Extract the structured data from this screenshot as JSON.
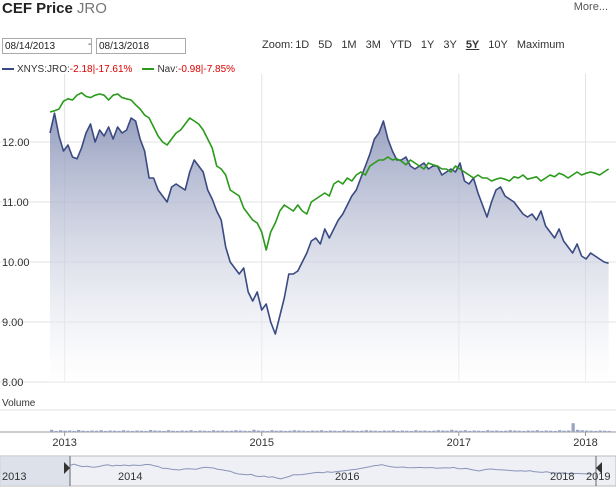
{
  "header": {
    "title": "CEF Price",
    "ticker": "JRO",
    "more_label": "More..."
  },
  "range": {
    "start": "08/14/2013",
    "end": "08/13/2018",
    "separator": "-"
  },
  "zoom": {
    "label": "Zoom:",
    "options": [
      "1D",
      "5D",
      "1M",
      "3M",
      "YTD",
      "1Y",
      "3Y",
      "5Y",
      "10Y",
      "Maximum"
    ],
    "selected": "5Y"
  },
  "legend": [
    {
      "name": "XNYS:JRO",
      "change": "-2.18",
      "pct": "-17.61%",
      "color": "#3a4a82"
    },
    {
      "name": "Nav",
      "change": "-0.98",
      "pct": "-7.85%",
      "color": "#2a9a1a"
    }
  ],
  "volume_label": "Volume",
  "chart_data": {
    "type": "line",
    "ylim": [
      8.0,
      13.0
    ],
    "yticks": [
      "12.00",
      "11.00",
      "10.00",
      "9.00",
      "8.00"
    ],
    "yticks_values": [
      12,
      11,
      10,
      9,
      8
    ],
    "x_axis_labels": [
      "2013",
      "2015",
      "2017",
      "2018"
    ],
    "x_axis_dates": [
      2013.75,
      2015.5,
      2017.25,
      2018.375
    ],
    "navigator_labels": [
      "2013",
      "2014",
      "2016",
      "2018",
      "2019"
    ],
    "xlim": [
      2013.62,
      2018.61
    ],
    "grid": true,
    "series": [
      {
        "name": "XNYS:JRO",
        "color": "#3a4a82",
        "x": [
          2013.62,
          2013.66,
          2013.7,
          2013.74,
          2013.78,
          2013.82,
          2013.86,
          2013.9,
          2013.94,
          2013.98,
          2014.02,
          2014.06,
          2014.1,
          2014.14,
          2014.18,
          2014.22,
          2014.26,
          2014.3,
          2014.34,
          2014.38,
          2014.42,
          2014.46,
          2014.5,
          2014.54,
          2014.58,
          2014.62,
          2014.66,
          2014.7,
          2014.74,
          2014.78,
          2014.82,
          2014.86,
          2014.9,
          2014.94,
          2014.98,
          2015.02,
          2015.06,
          2015.1,
          2015.14,
          2015.18,
          2015.22,
          2015.26,
          2015.3,
          2015.34,
          2015.38,
          2015.42,
          2015.46,
          2015.5,
          2015.54,
          2015.58,
          2015.62,
          2015.66,
          2015.7,
          2015.74,
          2015.78,
          2015.82,
          2015.86,
          2015.9,
          2015.94,
          2015.98,
          2016.02,
          2016.06,
          2016.1,
          2016.14,
          2016.18,
          2016.22,
          2016.26,
          2016.3,
          2016.34,
          2016.38,
          2016.42,
          2016.46,
          2016.5,
          2016.54,
          2016.58,
          2016.62,
          2016.66,
          2016.7,
          2016.74,
          2016.78,
          2016.82,
          2016.86,
          2016.9,
          2016.94,
          2016.98,
          2017.02,
          2017.06,
          2017.1,
          2017.14,
          2017.18,
          2017.22,
          2017.26,
          2017.3,
          2017.34,
          2017.38,
          2017.42,
          2017.46,
          2017.5,
          2017.54,
          2017.58,
          2017.62,
          2017.66,
          2017.7,
          2017.74,
          2017.78,
          2017.82,
          2017.86,
          2017.9,
          2017.94,
          2017.98,
          2018.02,
          2018.06,
          2018.1,
          2018.14,
          2018.18,
          2018.22,
          2018.26,
          2018.3,
          2018.34,
          2018.38,
          2018.42,
          2018.46,
          2018.5,
          2018.54,
          2018.58
        ],
        "values": [
          12.15,
          12.48,
          12.1,
          11.85,
          11.95,
          11.75,
          11.72,
          11.9,
          12.15,
          12.3,
          12.0,
          12.2,
          12.1,
          12.25,
          12.05,
          12.25,
          12.15,
          12.2,
          12.4,
          12.35,
          12.05,
          11.85,
          11.4,
          11.4,
          11.2,
          11.1,
          11.0,
          11.25,
          11.3,
          11.25,
          11.2,
          11.5,
          11.7,
          11.6,
          11.5,
          11.2,
          11.05,
          10.85,
          10.7,
          10.25,
          10.0,
          9.9,
          9.8,
          9.9,
          9.5,
          9.35,
          9.5,
          9.2,
          9.3,
          9.0,
          8.8,
          9.1,
          9.4,
          9.8,
          9.8,
          9.85,
          10.0,
          10.15,
          10.35,
          10.4,
          10.3,
          10.55,
          10.4,
          10.55,
          10.7,
          10.8,
          10.95,
          11.1,
          11.2,
          11.4,
          11.6,
          11.8,
          12.05,
          12.15,
          12.35,
          12.05,
          11.85,
          11.7,
          11.7,
          11.75,
          11.6,
          11.55,
          11.6,
          11.65,
          11.55,
          11.6,
          11.6,
          11.45,
          11.5,
          11.55,
          11.5,
          11.65,
          11.35,
          11.3,
          11.4,
          11.15,
          10.95,
          10.75,
          11.0,
          11.2,
          11.25,
          11.1,
          11.05,
          11.0,
          10.9,
          10.8,
          10.75,
          10.8,
          10.7,
          10.85,
          10.6,
          10.5,
          10.4,
          10.55,
          10.35,
          10.25,
          10.15,
          10.3,
          10.1,
          10.05,
          10.15,
          10.1,
          10.05,
          10.0,
          9.98
        ]
      },
      {
        "name": "Nav",
        "color": "#2a9a1a",
        "x": [
          2013.62,
          2013.66,
          2013.7,
          2013.74,
          2013.78,
          2013.82,
          2013.86,
          2013.9,
          2013.94,
          2013.98,
          2014.02,
          2014.06,
          2014.1,
          2014.14,
          2014.18,
          2014.22,
          2014.26,
          2014.3,
          2014.34,
          2014.38,
          2014.42,
          2014.46,
          2014.5,
          2014.54,
          2014.58,
          2014.62,
          2014.66,
          2014.7,
          2014.74,
          2014.78,
          2014.82,
          2014.86,
          2014.9,
          2014.94,
          2014.98,
          2015.02,
          2015.06,
          2015.1,
          2015.14,
          2015.18,
          2015.22,
          2015.26,
          2015.3,
          2015.34,
          2015.38,
          2015.42,
          2015.46,
          2015.5,
          2015.54,
          2015.58,
          2015.62,
          2015.66,
          2015.7,
          2015.74,
          2015.78,
          2015.82,
          2015.86,
          2015.9,
          2015.94,
          2015.98,
          2016.02,
          2016.06,
          2016.1,
          2016.14,
          2016.18,
          2016.22,
          2016.26,
          2016.3,
          2016.34,
          2016.38,
          2016.42,
          2016.46,
          2016.5,
          2016.54,
          2016.58,
          2016.62,
          2016.66,
          2016.7,
          2016.74,
          2016.78,
          2016.82,
          2016.86,
          2016.9,
          2016.94,
          2016.98,
          2017.02,
          2017.06,
          2017.1,
          2017.14,
          2017.18,
          2017.22,
          2017.26,
          2017.3,
          2017.34,
          2017.38,
          2017.42,
          2017.46,
          2017.5,
          2017.54,
          2017.58,
          2017.62,
          2017.66,
          2017.7,
          2017.74,
          2017.78,
          2017.82,
          2017.86,
          2017.9,
          2017.94,
          2017.98,
          2018.02,
          2018.06,
          2018.1,
          2018.14,
          2018.18,
          2018.22,
          2018.26,
          2018.3,
          2018.34,
          2018.38,
          2018.42,
          2018.46,
          2018.5,
          2018.54,
          2018.58
        ],
        "values": [
          12.5,
          12.52,
          12.55,
          12.68,
          12.72,
          12.7,
          12.78,
          12.82,
          12.76,
          12.74,
          12.78,
          12.8,
          12.78,
          12.7,
          12.78,
          12.8,
          12.74,
          12.72,
          12.7,
          12.62,
          12.55,
          12.45,
          12.4,
          12.25,
          12.1,
          12.0,
          11.95,
          12.05,
          12.15,
          12.2,
          12.3,
          12.4,
          12.35,
          12.3,
          12.2,
          12.05,
          11.9,
          11.6,
          11.55,
          11.45,
          11.2,
          11.15,
          11.1,
          10.9,
          10.8,
          10.7,
          10.65,
          10.5,
          10.2,
          10.5,
          10.65,
          10.85,
          10.95,
          10.9,
          10.85,
          10.95,
          10.85,
          10.8,
          11.0,
          11.05,
          11.1,
          11.15,
          11.1,
          11.3,
          11.35,
          11.3,
          11.4,
          11.35,
          11.45,
          11.5,
          11.45,
          11.6,
          11.65,
          11.7,
          11.7,
          11.75,
          11.7,
          11.72,
          11.68,
          11.62,
          11.7,
          11.65,
          11.6,
          11.55,
          11.65,
          11.62,
          11.6,
          11.55,
          11.55,
          11.5,
          11.6,
          11.55,
          11.5,
          11.45,
          11.4,
          11.45,
          11.4,
          11.4,
          11.35,
          11.38,
          11.4,
          11.38,
          11.35,
          11.42,
          11.4,
          11.45,
          11.38,
          11.4,
          11.42,
          11.35,
          11.4,
          11.45,
          11.42,
          11.48,
          11.45,
          11.4,
          11.45,
          11.5,
          11.45,
          11.48,
          11.5,
          11.48,
          11.45,
          11.5,
          11.55
        ]
      }
    ],
    "volume": {
      "note_levels": "relative heights",
      "values": [
        0.1,
        0.05,
        0.08,
        0.06,
        0.07,
        0.05,
        0.09,
        0.06,
        0.05,
        0.07,
        0.06,
        0.08,
        0.05,
        0.07,
        0.06,
        0.05,
        0.08,
        0.06,
        0.05,
        0.07,
        0.06,
        0.05,
        0.09,
        0.07,
        0.06,
        0.05,
        0.08,
        0.06,
        0.05,
        0.07,
        0.06,
        0.08,
        0.05,
        0.07,
        0.06,
        0.05,
        0.08,
        0.06,
        0.07,
        0.05,
        0.06,
        0.08,
        0.07,
        0.06,
        0.05,
        0.1,
        0.07,
        0.06,
        0.05,
        0.08,
        0.06,
        0.07,
        0.05,
        0.06,
        0.08,
        0.07,
        0.06,
        0.05,
        0.07,
        0.06,
        0.08,
        0.05,
        0.07,
        0.06,
        0.05,
        0.08,
        0.06,
        0.07,
        0.05,
        0.06,
        0.08,
        0.07,
        0.06,
        0.05,
        0.07,
        0.06,
        0.08,
        0.05,
        0.07,
        0.06,
        0.05,
        0.08,
        0.06,
        0.07,
        0.05,
        0.06,
        0.08,
        0.07,
        0.06,
        0.1,
        0.07,
        0.06,
        0.08,
        0.05,
        0.07,
        0.06,
        0.05,
        0.08,
        0.06,
        0.07,
        0.05,
        0.06,
        0.08,
        0.07,
        0.06,
        0.05,
        0.07,
        0.06,
        0.08,
        0.05,
        0.07,
        0.06,
        0.05,
        0.08,
        0.06,
        0.07,
        0.4,
        0.1,
        0.08,
        0.07,
        0.06,
        0.05,
        0.07,
        0.06,
        0.05
      ]
    }
  }
}
